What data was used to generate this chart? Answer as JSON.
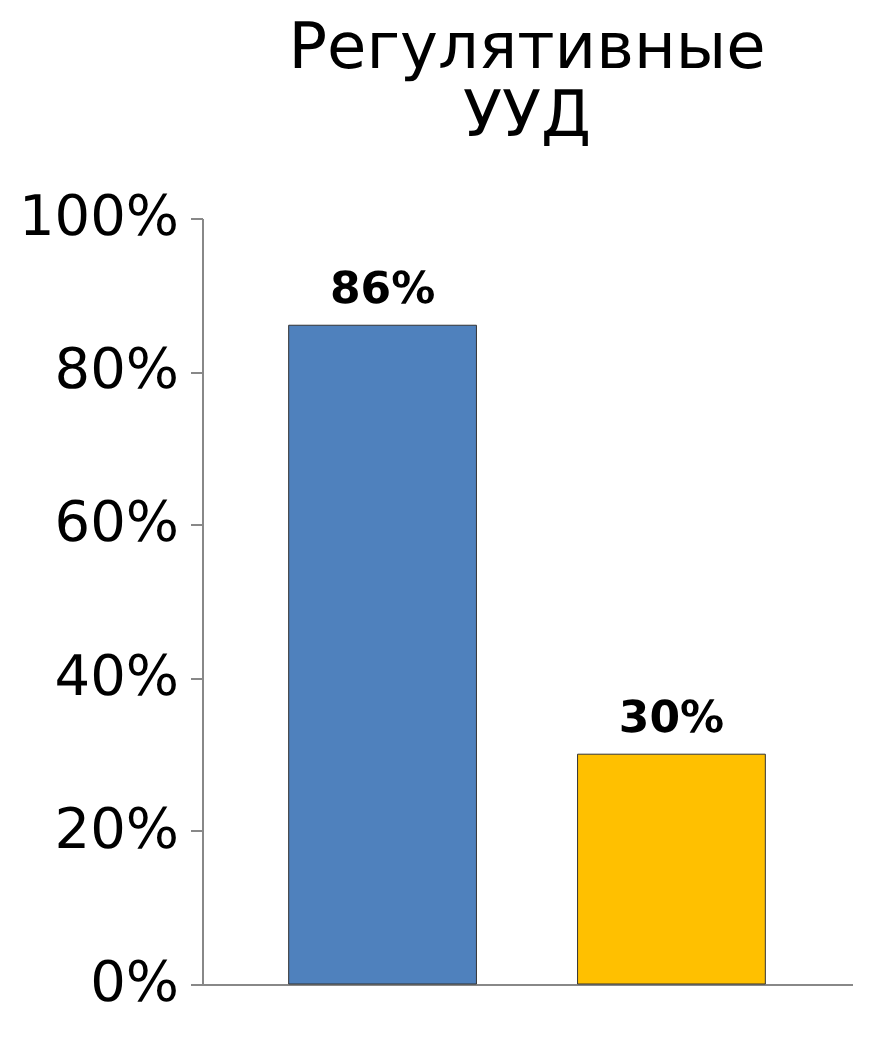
{
  "chart_data": {
    "type": "bar",
    "title": "Регулятивные УУД",
    "categories": [
      null,
      null
    ],
    "values": [
      86,
      30
    ],
    "colors": [
      "#4f81bd",
      "#ffc000"
    ],
    "value_labels": [
      "86%",
      "30%"
    ],
    "ylim": [
      0,
      100
    ],
    "yticks": [
      {
        "value": 0,
        "label": "0%"
      },
      {
        "value": 20,
        "label": "20%"
      },
      {
        "value": 40,
        "label": "40%"
      },
      {
        "value": 60,
        "label": "60%"
      },
      {
        "value": 80,
        "label": "80%"
      },
      {
        "value": 100,
        "label": "100%"
      }
    ],
    "grid": false
  }
}
